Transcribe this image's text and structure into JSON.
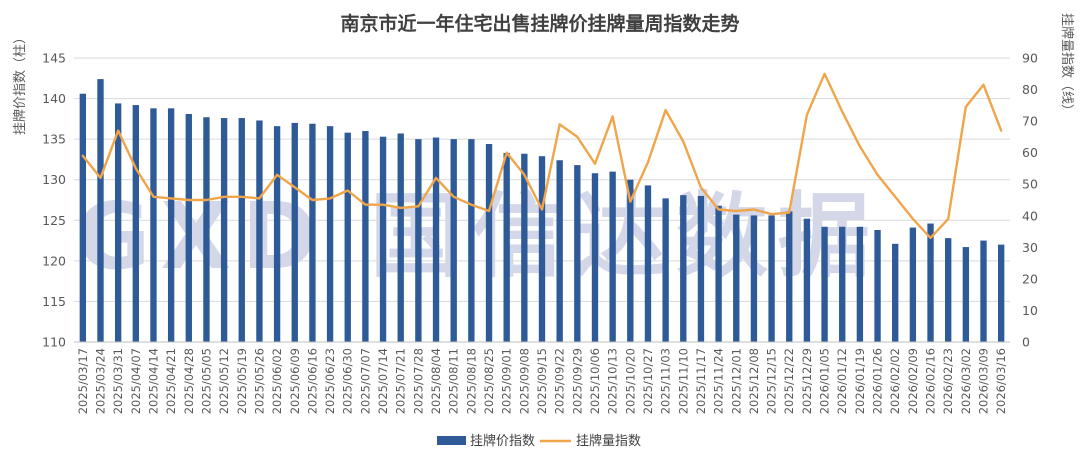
{
  "chart_data": {
    "type": "bar+line",
    "title": "南京市近一年住宅出售挂牌价挂牌量周指数走势",
    "ylabel_left": "挂牌价指数（柱）",
    "ylabel_right": "挂牌量指数（线）",
    "ylim_left": [
      110,
      145
    ],
    "ylim_right": [
      0,
      90
    ],
    "yticks_left": [
      110,
      115,
      120,
      125,
      130,
      135,
      140,
      145
    ],
    "yticks_right": [
      0,
      10,
      20,
      30,
      40,
      50,
      60,
      70,
      80,
      90
    ],
    "grid": true,
    "legend_position": "bottom",
    "watermark": "GXD 国信达数据",
    "categories": [
      "2025/03/17",
      "2025/03/24",
      "2025/03/31",
      "2025/04/07",
      "2025/04/14",
      "2025/04/21",
      "2025/04/28",
      "2025/05/05",
      "2025/05/12",
      "2025/05/19",
      "2025/05/26",
      "2025/06/02",
      "2025/06/09",
      "2025/06/16",
      "2025/06/23",
      "2025/06/30",
      "2025/07/07",
      "2025/07/14",
      "2025/07/21",
      "2025/07/28",
      "2025/08/04",
      "2025/08/11",
      "2025/08/18",
      "2025/08/25",
      "2025/09/01",
      "2025/09/08",
      "2025/09/15",
      "2025/09/22",
      "2025/09/29",
      "2025/10/06",
      "2025/10/13",
      "2025/10/20",
      "2025/10/27",
      "2025/11/03",
      "2025/11/10",
      "2025/11/17",
      "2025/11/24",
      "2025/12/01",
      "2025/12/08",
      "2025/12/15",
      "2025/12/22",
      "2025/12/29",
      "2026/01/05",
      "2026/01/12",
      "2026/01/19",
      "2026/01/26",
      "2026/02/02",
      "2026/02/09",
      "2026/02/16",
      "2026/02/23",
      "2026/03/02",
      "2026/03/09",
      "2026/03/16"
    ],
    "series": [
      {
        "name": "挂牌价指数",
        "type": "bar",
        "axis": "left",
        "color": "#2E5B97",
        "values": [
          140.6,
          142.4,
          139.4,
          139.2,
          138.8,
          138.8,
          138.1,
          137.7,
          137.6,
          137.6,
          137.3,
          136.6,
          137.0,
          136.9,
          136.6,
          135.8,
          136.0,
          135.3,
          135.7,
          135.0,
          135.2,
          135.0,
          135.0,
          134.4,
          133.3,
          133.2,
          132.9,
          132.4,
          131.8,
          130.8,
          131.0,
          130.0,
          129.3,
          127.7,
          128.1,
          128.0,
          126.8,
          125.7,
          125.6,
          125.6,
          126.1,
          125.2,
          124.2,
          124.2,
          124.2,
          123.8,
          122.1,
          124.1,
          124.6,
          122.8,
          121.7,
          122.5,
          122.0
        ]
      },
      {
        "name": "挂牌量指数",
        "type": "line",
        "axis": "right",
        "color": "#F0A54A",
        "values": [
          59,
          52,
          67,
          55,
          46,
          45.5,
          45,
          45,
          46,
          46,
          45.5,
          53,
          49,
          45,
          45.5,
          48,
          43.5,
          43.5,
          42.5,
          43,
          52,
          46,
          43.5,
          41.5,
          60,
          53,
          42,
          69,
          65,
          56.5,
          71.5,
          44.5,
          57,
          73.5,
          63.5,
          49,
          42,
          41.5,
          42,
          40.5,
          41,
          72,
          85,
          73,
          62,
          53,
          46,
          39,
          33,
          39,
          74.5,
          81.5,
          67
        ]
      }
    ]
  }
}
